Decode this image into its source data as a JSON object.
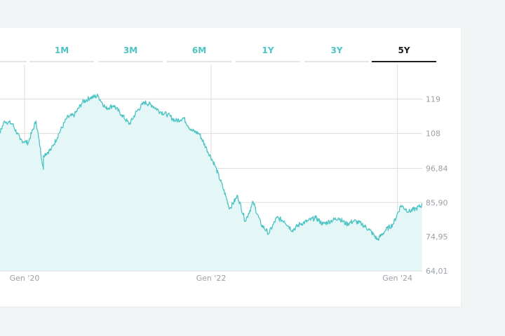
{
  "tabs": [
    {
      "label": "1M",
      "active": false
    },
    {
      "label": "3M",
      "active": false
    },
    {
      "label": "6M",
      "active": false
    },
    {
      "label": "1Y",
      "active": false
    },
    {
      "label": "3Y",
      "active": false
    },
    {
      "label": "5Y",
      "active": true
    }
  ],
  "colors": {
    "accent": "#4cc4c4",
    "area_fill": "#e5f6f6",
    "grid": "#dddddd",
    "tick_text": "#9aa0a6"
  },
  "chart_data": {
    "type": "area",
    "title": "",
    "xlabel": "",
    "ylabel": "",
    "ylim": [
      64.01,
      130.0
    ],
    "y_ticks": [
      "119",
      "108",
      "96,84",
      "85,90",
      "74,95",
      "64,01"
    ],
    "y_tick_values": [
      119,
      108,
      96.84,
      85.9,
      74.95,
      64.01
    ],
    "x_ticks": [
      "Gen '20",
      "Gen '22",
      "Gen '24"
    ],
    "x_tick_dates": [
      "2020-01-01",
      "2022-01-01",
      "2024-01-01"
    ],
    "grid": true,
    "series": [
      {
        "x": [
          "2019-06",
          "2019-07",
          "2019-08",
          "2019-09",
          "2019-10",
          "2019-11",
          "2019-12",
          "2020-01",
          "2020-02",
          "2020-03",
          "2020-03",
          "2020-04",
          "2020-05",
          "2020-06",
          "2020-07",
          "2020-08",
          "2020-09",
          "2020-10",
          "2020-11",
          "2020-12",
          "2021-01",
          "2021-02",
          "2021-03",
          "2021-04",
          "2021-05",
          "2021-06",
          "2021-07",
          "2021-08",
          "2021-09",
          "2021-10",
          "2021-11",
          "2021-12",
          "2022-01",
          "2022-02",
          "2022-03",
          "2022-04",
          "2022-05",
          "2022-06",
          "2022-07",
          "2022-08",
          "2022-09",
          "2022-10",
          "2022-11",
          "2022-12",
          "2023-01",
          "2023-02",
          "2023-03",
          "2023-04",
          "2023-05",
          "2023-06",
          "2023-07",
          "2023-08",
          "2023-09",
          "2023-10",
          "2023-11",
          "2023-12",
          "2024-01",
          "2024-02",
          "2024-03",
          "2024-04"
        ],
        "y": [
          112,
          110.5,
          107,
          106,
          112,
          111,
          106,
          105,
          112,
          96.5,
          101,
          103,
          108,
          113,
          114,
          118,
          119.5,
          120,
          116,
          117,
          114,
          111,
          115,
          118,
          117,
          115,
          114,
          112,
          113,
          109,
          108,
          103,
          98,
          91,
          84,
          88,
          80,
          86,
          79,
          76,
          81,
          80,
          77,
          79,
          80,
          81,
          79,
          80,
          81,
          79,
          80,
          79,
          77,
          74,
          77,
          79,
          85,
          83,
          84,
          85.5
        ]
      }
    ]
  }
}
